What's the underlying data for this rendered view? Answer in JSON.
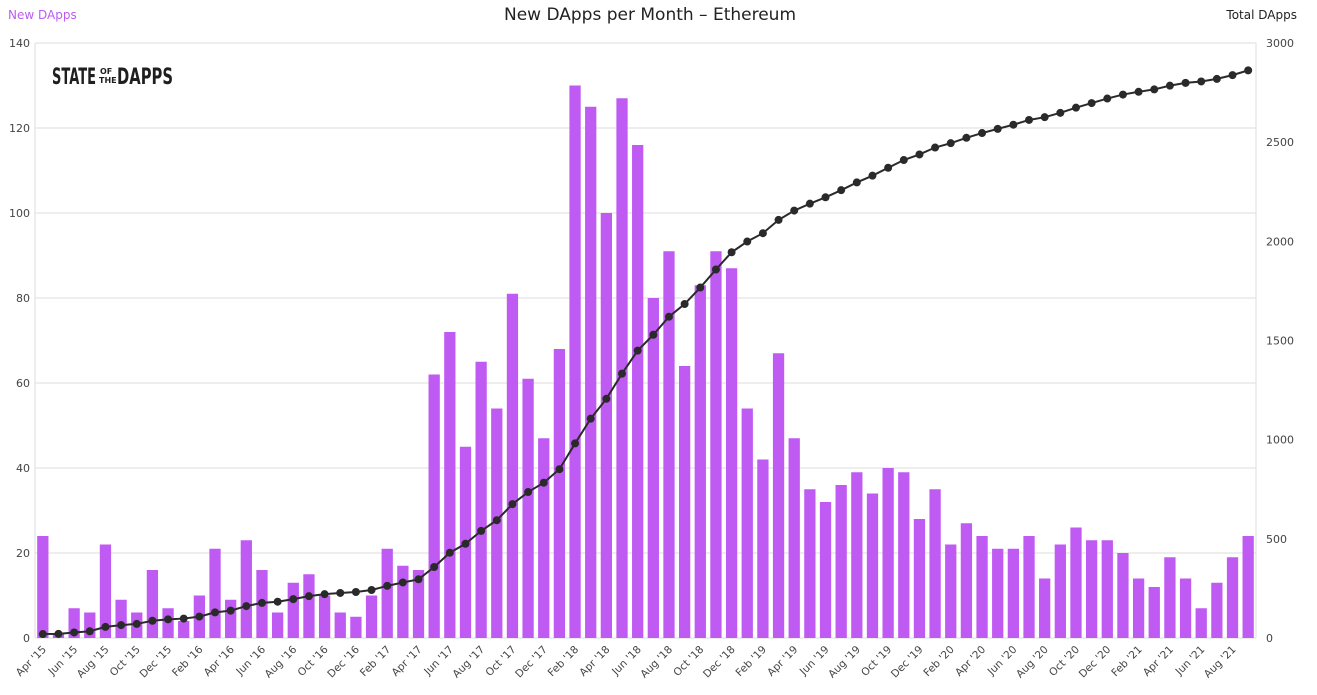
{
  "chart_data": {
    "type": "bar",
    "title": "New DApps per Month – Ethereum",
    "left_axis_title": "New DApps",
    "right_axis_title": "Total DApps",
    "y_left_range": [
      0,
      140
    ],
    "y_left_ticks": [
      "0",
      "20",
      "40",
      "60",
      "80",
      "100",
      "120",
      "140"
    ],
    "y_right_range": [
      0,
      3000
    ],
    "y_right_ticks": [
      "0",
      "500",
      "1000",
      "1500",
      "2000",
      "2500",
      "3000"
    ],
    "grid": true,
    "bar_color": "#bf5af2",
    "line_color": "#2a2a2a",
    "x_tick_labels": [
      "Apr '15",
      "Jun '15",
      "Aug '15",
      "Oct '15",
      "Dec '15",
      "Feb '16",
      "Apr '16",
      "Jun '16",
      "Aug '16",
      "Oct '16",
      "Dec '16",
      "Feb '17",
      "Apr '17",
      "Jun '17",
      "Aug '17",
      "Oct '17",
      "Dec '17",
      "Feb '18",
      "Apr '18",
      "Jun '18",
      "Aug '18",
      "Oct '18",
      "Dec '18",
      "Feb '19",
      "Apr '19",
      "Jun '19",
      "Aug '19",
      "Oct '19",
      "Dec '19",
      "Feb '20",
      "Apr '20",
      "Jun '20",
      "Aug '20",
      "Oct '20",
      "Dec '20",
      "Feb '21",
      "Apr '21",
      "Jun '21",
      "Aug '21"
    ],
    "series": [
      {
        "name": "New DApps",
        "type": "bar",
        "axis": "left",
        "values": [
          24,
          1,
          7,
          6,
          22,
          9,
          6,
          16,
          7,
          4,
          10,
          21,
          9,
          23,
          16,
          6,
          13,
          15,
          10,
          6,
          5,
          10,
          21,
          17,
          16,
          62,
          72,
          45,
          65,
          54,
          81,
          61,
          47,
          68,
          130,
          125,
          100,
          127,
          116,
          80,
          91,
          64,
          83,
          91,
          87,
          54,
          42,
          67,
          47,
          35,
          32,
          36,
          39,
          34,
          40,
          39,
          28,
          35,
          22,
          27,
          24,
          21,
          21,
          24,
          14,
          22,
          26,
          23,
          23,
          20,
          14,
          12,
          19,
          14,
          7,
          13,
          19,
          24
        ]
      },
      {
        "name": "Total DApps",
        "type": "line",
        "axis": "right",
        "values": [
          20,
          21,
          28,
          34,
          56,
          65,
          71,
          87,
          94,
          98,
          108,
          129,
          138,
          161,
          177,
          183,
          196,
          211,
          221,
          227,
          232,
          242,
          263,
          280,
          296,
          358,
          430,
          475,
          540,
          594,
          675,
          736,
          783,
          851,
          981,
          1106,
          1206,
          1333,
          1449,
          1529,
          1620,
          1684,
          1767,
          1858,
          1945,
          1999,
          2041,
          2108,
          2155,
          2190,
          2222,
          2258,
          2297,
          2331,
          2371,
          2410,
          2438,
          2473,
          2495,
          2522,
          2546,
          2567,
          2588,
          2612,
          2626,
          2648,
          2674,
          2697,
          2720,
          2740,
          2754,
          2766,
          2785,
          2799,
          2806,
          2819,
          2838,
          2862
        ]
      }
    ]
  },
  "logo": {
    "word_state": "STATE",
    "word_of": "OF",
    "word_the": "THE",
    "word_dapps": "DAPPS"
  }
}
